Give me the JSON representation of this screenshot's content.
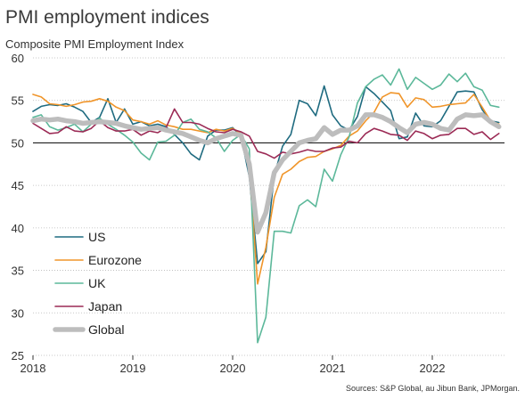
{
  "chart_data": {
    "type": "line",
    "title": "PMI employment indices",
    "ylabel": "Composite PMI Employment Index",
    "source": "Sources: S&P Global, au Jibun Bank, JPMorgan.",
    "ylim": [
      25,
      60
    ],
    "y_ticks": [
      25,
      30,
      35,
      40,
      45,
      50,
      55,
      60
    ],
    "x_range": [
      "2018-01",
      "2022-09"
    ],
    "x_ticks": [
      "2018",
      "2019",
      "2020",
      "2021",
      "2022"
    ],
    "reference_line": 50,
    "grid": "horizontal dotted",
    "legend_position": "left-bottom",
    "x": [
      "2018-01",
      "2018-02",
      "2018-03",
      "2018-04",
      "2018-05",
      "2018-06",
      "2018-07",
      "2018-08",
      "2018-09",
      "2018-10",
      "2018-11",
      "2018-12",
      "2019-01",
      "2019-02",
      "2019-03",
      "2019-04",
      "2019-05",
      "2019-06",
      "2019-07",
      "2019-08",
      "2019-09",
      "2019-10",
      "2019-11",
      "2019-12",
      "2020-01",
      "2020-02",
      "2020-03",
      "2020-04",
      "2020-05",
      "2020-06",
      "2020-07",
      "2020-08",
      "2020-09",
      "2020-10",
      "2020-11",
      "2020-12",
      "2021-01",
      "2021-02",
      "2021-03",
      "2021-04",
      "2021-05",
      "2021-06",
      "2021-07",
      "2021-08",
      "2021-09",
      "2021-10",
      "2021-11",
      "2021-12",
      "2022-01",
      "2022-02",
      "2022-03",
      "2022-04",
      "2022-05",
      "2022-06",
      "2022-07",
      "2022-08",
      "2022-09"
    ],
    "series": [
      {
        "name": "US",
        "color": "#1f6b80",
        "width": 1.6,
        "values": [
          53.7,
          54.3,
          54.5,
          54.4,
          54.6,
          54.2,
          53.7,
          52.4,
          53.0,
          55.2,
          52.4,
          54.0,
          52.2,
          52.5,
          52.0,
          52.2,
          51.9,
          51.0,
          50.0,
          48.7,
          48.0,
          50.8,
          51.5,
          51.5,
          51.8,
          50.8,
          46.0,
          35.8,
          37.2,
          46.2,
          49.6,
          51.0,
          55.0,
          54.6,
          53.2,
          56.7,
          53.3,
          52.0,
          51.5,
          53.1,
          56.6,
          55.8,
          54.8,
          53.8,
          50.5,
          50.7,
          53.5,
          52.0,
          51.9,
          52.6,
          54.3,
          56.0,
          56.1,
          56.0,
          53.9,
          52.6,
          52.4
        ]
      },
      {
        "name": "Eurozone",
        "color": "#f0952a",
        "width": 1.6,
        "values": [
          55.7,
          55.4,
          54.6,
          54.5,
          54.3,
          54.5,
          54.8,
          54.9,
          55.2,
          54.9,
          54.2,
          53.8,
          52.7,
          52.5,
          52.2,
          52.6,
          52.1,
          51.9,
          51.6,
          51.6,
          51.4,
          51.2,
          51.6,
          51.4,
          51.7,
          51.1,
          47.0,
          33.4,
          37.7,
          43.6,
          46.3,
          46.9,
          47.8,
          48.3,
          48.4,
          49.0,
          49.3,
          49.7,
          50.8,
          51.4,
          52.6,
          53.6,
          55.4,
          55.9,
          55.8,
          54.2,
          55.3,
          55.1,
          54.2,
          54.3,
          54.5,
          54.6,
          54.7,
          55.7,
          54.2,
          52.6,
          52.2
        ]
      },
      {
        "name": "UK",
        "color": "#5cb89a",
        "width": 1.6,
        "values": [
          53.0,
          53.3,
          51.9,
          51.5,
          51.8,
          52.2,
          51.3,
          52.2,
          52.9,
          52.2,
          51.6,
          50.9,
          50.1,
          48.8,
          48.0,
          50.1,
          50.2,
          50.9,
          52.4,
          52.8,
          51.6,
          51.3,
          50.6,
          49.0,
          50.3,
          51.0,
          49.3,
          26.5,
          29.5,
          39.6,
          39.6,
          39.4,
          42.6,
          43.3,
          42.5,
          46.9,
          45.5,
          48.6,
          50.7,
          54.7,
          56.6,
          57.5,
          58.0,
          56.8,
          58.7,
          56.3,
          57.7,
          57.0,
          56.3,
          56.8,
          58.1,
          57.2,
          58.2,
          56.6,
          56.2,
          54.4,
          54.2
        ]
      },
      {
        "name": "Japan",
        "color": "#9b2a55",
        "width": 1.6,
        "values": [
          52.3,
          51.7,
          51.1,
          51.2,
          51.9,
          51.4,
          51.3,
          51.7,
          52.6,
          51.8,
          51.4,
          51.4,
          51.6,
          50.9,
          51.4,
          51.2,
          51.8,
          54.0,
          52.4,
          52.4,
          52.2,
          51.7,
          51.3,
          51.2,
          51.6,
          51.3,
          50.8,
          49.0,
          48.7,
          48.2,
          48.9,
          48.7,
          48.9,
          49.2,
          49.0,
          49.0,
          49.4,
          49.5,
          50.2,
          50.0,
          51.1,
          51.7,
          51.4,
          51.0,
          50.9,
          50.3,
          51.4,
          51.1,
          50.5,
          50.9,
          51.0,
          51.7,
          51.7,
          51.0,
          51.3,
          50.4,
          51.1
        ]
      },
      {
        "name": "Global",
        "color": "#bdbdbd",
        "width": 5.5,
        "values": [
          52.6,
          52.8,
          52.7,
          52.8,
          52.6,
          52.5,
          52.3,
          52.4,
          52.5,
          52.4,
          52.3,
          52.0,
          51.8,
          51.6,
          51.7,
          51.8,
          51.5,
          51.3,
          51.1,
          50.7,
          50.3,
          50.0,
          50.5,
          50.8,
          51.1,
          50.9,
          47.5,
          39.5,
          41.8,
          46.5,
          48.0,
          49.0,
          50.0,
          50.3,
          50.5,
          51.8,
          51.0,
          51.5,
          51.5,
          52.0,
          53.3,
          53.3,
          53.0,
          52.5,
          51.8,
          51.2,
          52.2,
          52.4,
          52.2,
          51.7,
          51.5,
          52.8,
          53.3,
          53.2,
          53.3,
          52.5,
          51.9
        ]
      }
    ]
  }
}
